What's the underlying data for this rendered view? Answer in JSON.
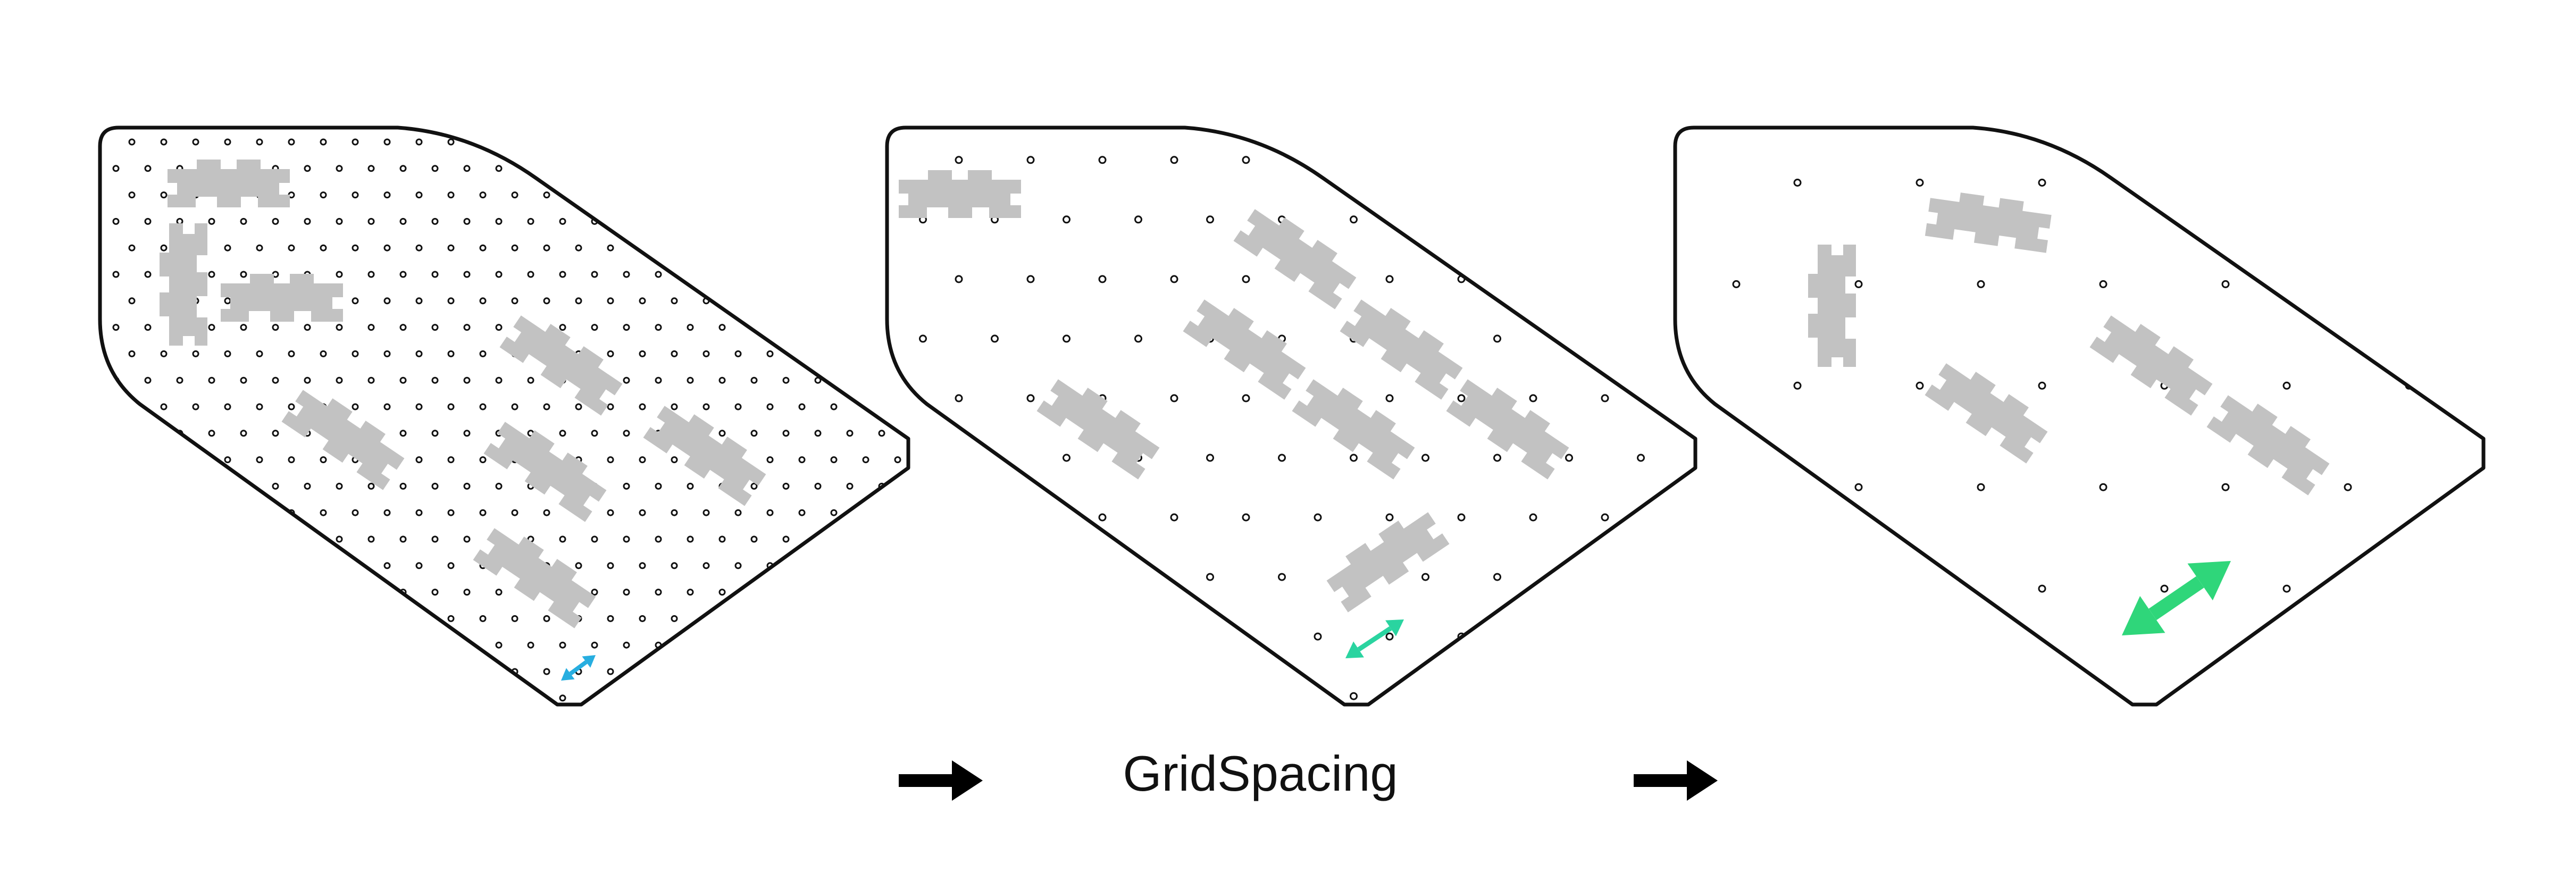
{
  "caption": "GridSpacing",
  "colors": {
    "outline": "#111111",
    "building": "#c2c2c2",
    "arrow_small": "#27aee0",
    "arrow_medium": "#2ad4a0",
    "arrow_large": "#2fd67a",
    "flow_arrow": "#000000"
  },
  "panels": [
    {
      "grid": "fine"
    },
    {
      "grid": "medium"
    },
    {
      "grid": "coarse"
    }
  ],
  "icons": [
    "flow-arrow-icon",
    "spacing-arrow-icon",
    "building-footprint-icon"
  ]
}
